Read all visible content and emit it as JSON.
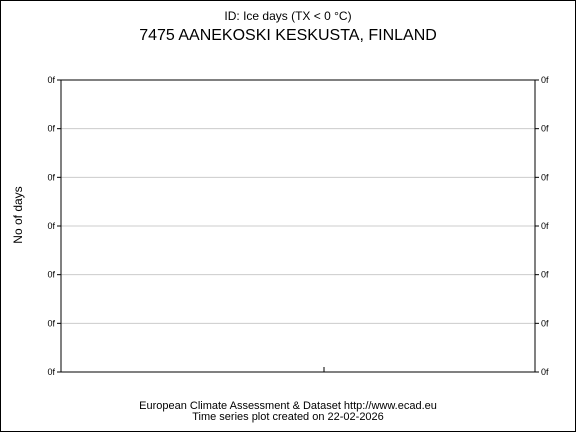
{
  "chart_data": {
    "type": "line",
    "subtitle": "ID: Ice days (TX < 0 °C)",
    "title": "7475 AANEKOSKI KESKUSTA, FINLAND",
    "ylabel": "No of days",
    "xlabel": "",
    "y_tick_labels": [
      "0f",
      "0f",
      "0f",
      "0f",
      "0f",
      "0f",
      "0f"
    ],
    "x_tick_labels": [],
    "series": [],
    "grid": true,
    "legend": "none"
  },
  "footer": {
    "line1": "European Climate Assessment & Dataset  http://www.ecad.eu",
    "line2": "Time series plot created on 22-02-2026"
  },
  "colors": {
    "axis": "#000000",
    "grid": "#cccccc",
    "background": "#ffffff"
  }
}
